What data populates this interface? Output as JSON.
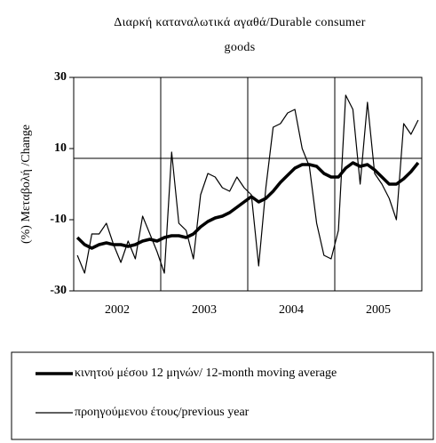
{
  "chart_data": {
    "type": "line",
    "title": "Διαρκή καταναλωτικά αγαθά/Durable consumer goods",
    "y_label": "(%) Μεταβολή /Change",
    "categories": [
      null,
      null,
      null,
      null,
      null,
      null,
      "2002",
      null,
      null,
      null,
      null,
      null,
      null,
      null,
      null,
      null,
      null,
      null,
      "2003",
      null,
      null,
      null,
      null,
      null,
      null,
      null,
      null,
      null,
      null,
      null,
      "2004",
      null,
      null,
      null,
      null,
      null,
      null,
      null,
      null,
      null,
      null,
      null,
      "2005",
      null,
      null,
      null,
      null,
      null
    ],
    "ylim": [
      -30,
      30
    ],
    "yticks": [
      -30,
      -10,
      10,
      30
    ],
    "series": [
      {
        "name": "κινητού μέσου 12 μηνών/ 12-month moving average",
        "color": "#000000",
        "width": 3.5,
        "values": [
          -15,
          -17,
          -18,
          -17,
          -16.5,
          -17,
          -17,
          -17.5,
          -17,
          -16,
          -15.5,
          -16,
          -15,
          -14.5,
          -14.5,
          -15,
          -14,
          -12,
          -10.5,
          -9.5,
          -9,
          -8,
          -6.5,
          -5,
          -3.5,
          -5,
          -4,
          -2,
          0.5,
          2.5,
          4.5,
          5.5,
          5.5,
          5,
          3,
          2,
          2,
          4.5,
          6,
          5,
          5.5,
          4,
          2,
          0,
          0,
          1.5,
          3.5,
          6
        ]
      },
      {
        "name": "προηγούμενου έτους/previous year",
        "color": "#000000",
        "width": 1.2,
        "values": [
          -20,
          -25,
          -14,
          -14,
          -11,
          -17,
          -22,
          -16,
          -21,
          -9,
          -14,
          -19,
          -25,
          9,
          -11,
          -13,
          -21,
          -3,
          3,
          2,
          -1,
          -2,
          2,
          -1,
          -3,
          -23,
          -1,
          16,
          17,
          20,
          21,
          10,
          5,
          -11,
          -20,
          -21,
          -13,
          25,
          21,
          0,
          23,
          3,
          0,
          -4,
          -10,
          17,
          14,
          18
        ]
      }
    ]
  }
}
